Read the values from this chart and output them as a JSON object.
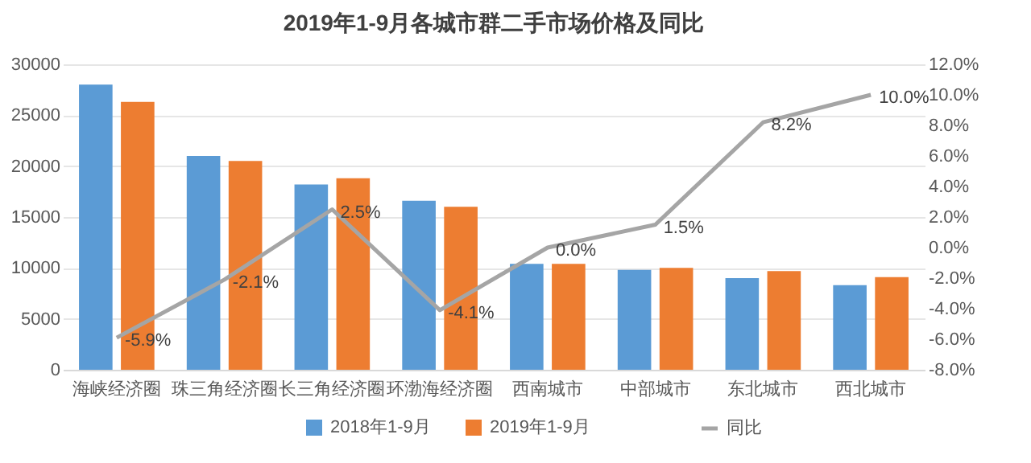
{
  "chart_data": {
    "type": "bar",
    "title": "2019年1-9月各城市群二手市场价格及同比",
    "categories": [
      "海峡经济圈",
      "珠三角经济圈",
      "长三角经济圈",
      "环渤海经济圈",
      "西南城市",
      "中部城市",
      "东北城市",
      "西北城市"
    ],
    "series": [
      {
        "name": "2018年1-9月",
        "color": "#5b9bd5",
        "values": [
          28000,
          21000,
          18200,
          16600,
          10400,
          9800,
          9000,
          8300
        ]
      },
      {
        "name": "2019年1-9月",
        "color": "#ed7d31",
        "values": [
          26300,
          20500,
          18800,
          16000,
          10400,
          10000,
          9700,
          9100
        ]
      },
      {
        "name": "同比",
        "type": "line",
        "axis": "y2",
        "color": "#a5a5a5",
        "values": [
          -5.9,
          -2.1,
          2.5,
          -4.1,
          0.0,
          1.5,
          8.2,
          10.0
        ],
        "value_labels": [
          "-5.9%",
          "-2.1%",
          "2.5%",
          "-4.1%",
          "0.0%",
          "1.5%",
          "8.2%",
          "10.0%"
        ]
      }
    ],
    "ylim": [
      0,
      30000
    ],
    "yticks": [
      0,
      5000,
      10000,
      15000,
      20000,
      25000,
      30000
    ],
    "y2lim": [
      -8,
      12
    ],
    "y2ticks": [
      {
        "value": -8,
        "label": "-8.0%"
      },
      {
        "value": -6,
        "label": "-6.0%"
      },
      {
        "value": -4,
        "label": "-4.0%"
      },
      {
        "value": -2,
        "label": "-2.0%"
      },
      {
        "value": 0,
        "label": "0.0%"
      },
      {
        "value": 2,
        "label": "2.0%"
      },
      {
        "value": 4,
        "label": "4.0%"
      },
      {
        "value": 6,
        "label": "6.0%"
      },
      {
        "value": 8,
        "label": "8.0%"
      },
      {
        "value": 10,
        "label": "10.0%"
      },
      {
        "value": 12,
        "label": "12.0%"
      }
    ],
    "grid": "y",
    "legend": "bottom"
  }
}
